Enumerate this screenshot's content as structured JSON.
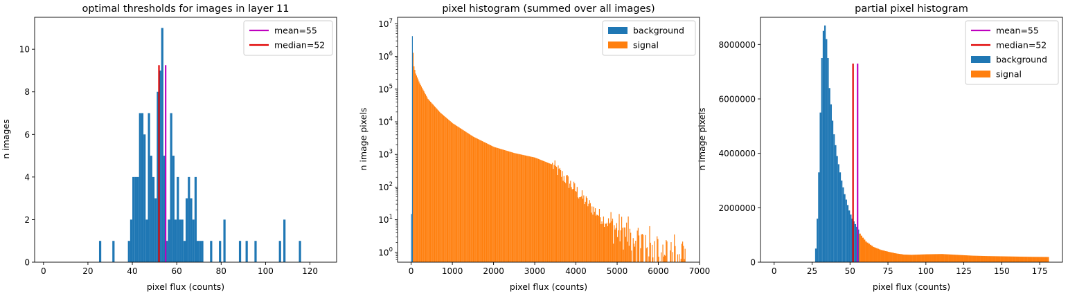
{
  "chart_data": [
    {
      "type": "bar",
      "title": "optimal thresholds for images in layer 11",
      "xlabel": "pixel flux (counts)",
      "ylabel": "n images",
      "xlim": [
        -4,
        132
      ],
      "ylim": [
        0,
        11.5
      ],
      "xticks": [
        0,
        20,
        40,
        60,
        80,
        100,
        120
      ],
      "yticks": [
        0,
        2,
        4,
        6,
        8,
        10
      ],
      "bin_width": 1,
      "bins": [
        {
          "x": 25,
          "value": 1
        },
        {
          "x": 31,
          "value": 1
        },
        {
          "x": 38,
          "value": 1
        },
        {
          "x": 39,
          "value": 2
        },
        {
          "x": 40,
          "value": 4
        },
        {
          "x": 41,
          "value": 4
        },
        {
          "x": 42,
          "value": 4
        },
        {
          "x": 43,
          "value": 7
        },
        {
          "x": 44,
          "value": 7
        },
        {
          "x": 45,
          "value": 6
        },
        {
          "x": 46,
          "value": 2
        },
        {
          "x": 47,
          "value": 7
        },
        {
          "x": 48,
          "value": 5
        },
        {
          "x": 49,
          "value": 4
        },
        {
          "x": 50,
          "value": 3
        },
        {
          "x": 51,
          "value": 8
        },
        {
          "x": 52,
          "value": 9
        },
        {
          "x": 53,
          "value": 11
        },
        {
          "x": 54,
          "value": 5
        },
        {
          "x": 55,
          "value": 1
        },
        {
          "x": 56,
          "value": 2
        },
        {
          "x": 57,
          "value": 7
        },
        {
          "x": 58,
          "value": 5
        },
        {
          "x": 59,
          "value": 2
        },
        {
          "x": 60,
          "value": 4
        },
        {
          "x": 61,
          "value": 2
        },
        {
          "x": 62,
          "value": 2
        },
        {
          "x": 63,
          "value": 1
        },
        {
          "x": 64,
          "value": 3
        },
        {
          "x": 65,
          "value": 4
        },
        {
          "x": 66,
          "value": 3
        },
        {
          "x": 67,
          "value": 2
        },
        {
          "x": 68,
          "value": 4
        },
        {
          "x": 69,
          "value": 1
        },
        {
          "x": 70,
          "value": 1
        },
        {
          "x": 71,
          "value": 1
        },
        {
          "x": 75,
          "value": 1
        },
        {
          "x": 79,
          "value": 1
        },
        {
          "x": 81,
          "value": 2
        },
        {
          "x": 88,
          "value": 1
        },
        {
          "x": 91,
          "value": 1
        },
        {
          "x": 95,
          "value": 1
        },
        {
          "x": 106,
          "value": 1
        },
        {
          "x": 108,
          "value": 2
        },
        {
          "x": 115,
          "value": 1
        }
      ],
      "bar_color": "#1f77b4",
      "vlines": [
        {
          "label": "mean=55",
          "x": 55,
          "y_top": 9.25,
          "color": "#bf00bf"
        },
        {
          "label": "median=52",
          "x": 52,
          "y_top": 9.25,
          "color": "#e00000"
        }
      ],
      "legend": "top-right"
    },
    {
      "type": "bar",
      "title": "pixel histogram (summed over all images)",
      "xlabel": "pixel flux (counts)",
      "ylabel": "n image pixels",
      "yscale": "log",
      "xlim": [
        -330,
        7000
      ],
      "ylim_exp": [
        -0.3,
        7.2
      ],
      "xticks": [
        0,
        1000,
        2000,
        3000,
        4000,
        5000,
        6000,
        7000
      ],
      "ytick_exponents": [
        0,
        1,
        2,
        3,
        4,
        5,
        6,
        7
      ],
      "bin_width": 20,
      "series": [
        {
          "name": "background",
          "color": "#1f77b4",
          "bars": [
            {
              "x": 0,
              "value": 15
            },
            {
              "x": 20,
              "value": 4200000
            }
          ]
        },
        {
          "name": "signal",
          "color": "#ff7f0e",
          "curve": [
            {
              "x": 40,
              "value": 1300000
            },
            {
              "x": 60,
              "value": 500000
            },
            {
              "x": 100,
              "value": 300000
            },
            {
              "x": 200,
              "value": 150000
            },
            {
              "x": 400,
              "value": 50000
            },
            {
              "x": 700,
              "value": 19000
            },
            {
              "x": 1000,
              "value": 9000
            },
            {
              "x": 1500,
              "value": 3500
            },
            {
              "x": 2000,
              "value": 1700
            },
            {
              "x": 2500,
              "value": 1100
            },
            {
              "x": 3000,
              "value": 800
            },
            {
              "x": 3400,
              "value": 500
            },
            {
              "x": 3800,
              "value": 150
            },
            {
              "x": 4200,
              "value": 40
            },
            {
              "x": 4600,
              "value": 12
            },
            {
              "x": 5000,
              "value": 5
            },
            {
              "x": 5400,
              "value": 3
            },
            {
              "x": 6000,
              "value": 1.5
            },
            {
              "x": 6650,
              "value": 1
            }
          ]
        }
      ],
      "legend": "top-right"
    },
    {
      "type": "bar",
      "title": "partial pixel histogram",
      "xlabel": "pixel flux (counts)",
      "ylabel": "n image pixels",
      "xlim": [
        -9,
        190
      ],
      "ylim": [
        0,
        9000000
      ],
      "xticks": [
        0,
        25,
        50,
        75,
        100,
        125,
        150,
        175
      ],
      "yticks": [
        0,
        2000000,
        4000000,
        6000000,
        8000000
      ],
      "bin_width": 1,
      "series": [
        {
          "name": "background",
          "color": "#1f77b4",
          "bars": [
            {
              "x": 27,
              "value": 500000
            },
            {
              "x": 28,
              "value": 1600000
            },
            {
              "x": 29,
              "value": 3300000
            },
            {
              "x": 30,
              "value": 5500000
            },
            {
              "x": 31,
              "value": 7500000
            },
            {
              "x": 32,
              "value": 8500000
            },
            {
              "x": 33,
              "value": 8700000
            },
            {
              "x": 34,
              "value": 8200000
            },
            {
              "x": 35,
              "value": 7500000
            },
            {
              "x": 36,
              "value": 6400000
            },
            {
              "x": 37,
              "value": 5800000
            },
            {
              "x": 38,
              "value": 5200000
            },
            {
              "x": 39,
              "value": 4700000
            },
            {
              "x": 40,
              "value": 4300000
            },
            {
              "x": 41,
              "value": 3900000
            },
            {
              "x": 42,
              "value": 3600000
            },
            {
              "x": 43,
              "value": 3300000
            },
            {
              "x": 44,
              "value": 3000000
            },
            {
              "x": 45,
              "value": 2750000
            },
            {
              "x": 46,
              "value": 2500000
            },
            {
              "x": 47,
              "value": 2300000
            },
            {
              "x": 48,
              "value": 2100000
            },
            {
              "x": 49,
              "value": 1900000
            },
            {
              "x": 50,
              "value": 1750000
            },
            {
              "x": 51,
              "value": 1600000
            },
            {
              "x": 52,
              "value": 1500000
            },
            {
              "x": 53,
              "value": 1400000
            },
            {
              "x": 54,
              "value": 1300000
            },
            {
              "x": 55,
              "value": 1200000
            }
          ]
        },
        {
          "name": "signal",
          "color": "#ff7f0e",
          "curve": [
            {
              "x": 56,
              "value": 1050000
            },
            {
              "x": 58,
              "value": 900000
            },
            {
              "x": 60,
              "value": 760000
            },
            {
              "x": 65,
              "value": 560000
            },
            {
              "x": 70,
              "value": 450000
            },
            {
              "x": 75,
              "value": 380000
            },
            {
              "x": 80,
              "value": 320000
            },
            {
              "x": 85,
              "value": 280000
            },
            {
              "x": 90,
              "value": 270000
            },
            {
              "x": 100,
              "value": 290000
            },
            {
              "x": 110,
              "value": 300000
            },
            {
              "x": 120,
              "value": 270000
            },
            {
              "x": 130,
              "value": 240000
            },
            {
              "x": 140,
              "value": 225000
            },
            {
              "x": 150,
              "value": 215000
            },
            {
              "x": 160,
              "value": 205000
            },
            {
              "x": 170,
              "value": 195000
            },
            {
              "x": 181,
              "value": 190000
            }
          ]
        }
      ],
      "vlines": [
        {
          "label": "mean=55",
          "x": 55,
          "y_top": 7300000,
          "color": "#bf00bf"
        },
        {
          "label": "median=52",
          "x": 52,
          "y_top": 7300000,
          "color": "#e00000"
        }
      ],
      "legend": "top-right"
    }
  ]
}
